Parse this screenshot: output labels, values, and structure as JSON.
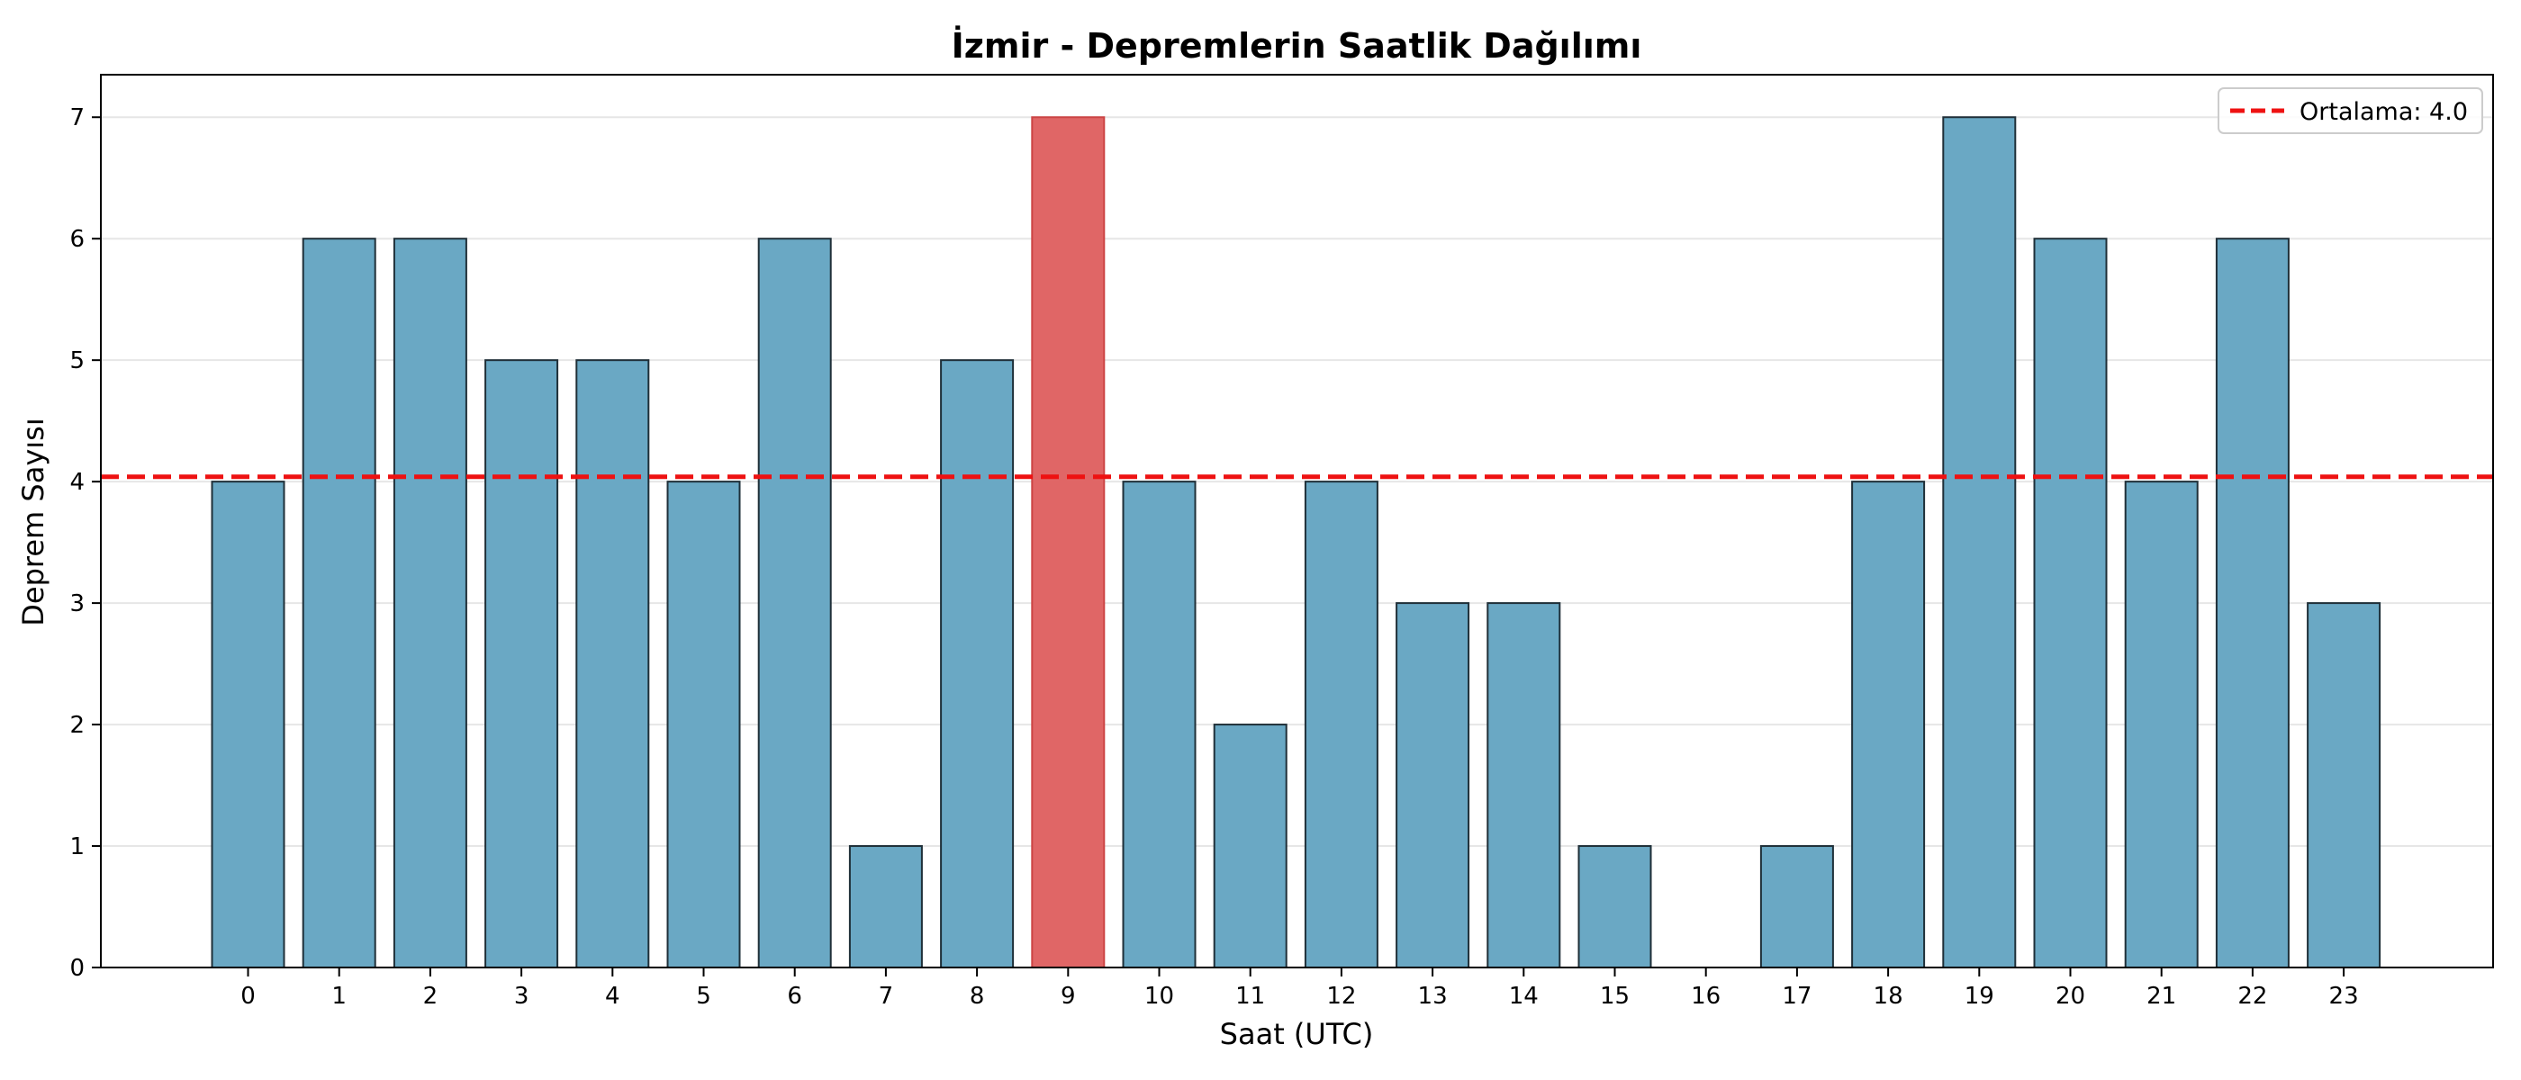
{
  "chart_data": {
    "type": "bar",
    "title": "İzmir - Depremlerin Saatlik Dağılımı",
    "xlabel": "Saat (UTC)",
    "ylabel": "Deprem Sayısı",
    "categories": [
      "0",
      "1",
      "2",
      "3",
      "4",
      "5",
      "6",
      "7",
      "8",
      "9",
      "10",
      "11",
      "12",
      "13",
      "14",
      "15",
      "16",
      "17",
      "18",
      "19",
      "20",
      "21",
      "22",
      "23"
    ],
    "values": [
      4,
      6,
      6,
      5,
      5,
      4,
      6,
      1,
      5,
      7,
      4,
      2,
      4,
      3,
      3,
      1,
      0,
      1,
      4,
      7,
      6,
      4,
      6,
      3
    ],
    "highlight_index": 9,
    "ylim": [
      0,
      7.35
    ],
    "yticks": [
      "0",
      "1",
      "2",
      "3",
      "4",
      "5",
      "6",
      "7"
    ],
    "grid": "y",
    "mean_line": {
      "value": 4.04,
      "label": "Ortalama: 4.0"
    },
    "legend_position": "top-right",
    "colors": {
      "bar": "#6aa8c4",
      "bar_highlight": "#e06666",
      "bar_edge": "#1f2f38",
      "mean_line": "#ee1111",
      "grid": "#e6e6e6"
    }
  }
}
